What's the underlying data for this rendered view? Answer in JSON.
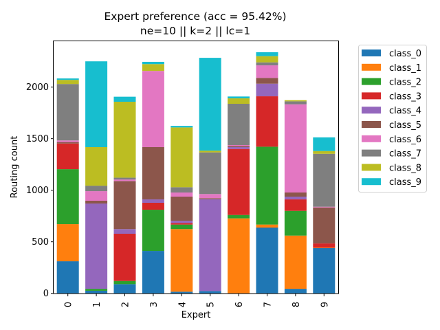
{
  "chart_data": {
    "type": "bar",
    "stacked": true,
    "title_line1": "Expert preference (acc = 95.42%)",
    "title_line2": "ne=10 || k=2 || lc=1",
    "xlabel": "Expert",
    "ylabel": "Routing count",
    "ylim": [
      0,
      2350
    ],
    "yticks": [
      0,
      500,
      1000,
      1500,
      2000
    ],
    "categories": [
      "0",
      "1",
      "2",
      "3",
      "4",
      "5",
      "6",
      "7",
      "8",
      "9"
    ],
    "grid": false,
    "legend_position": "outside-right",
    "series": [
      {
        "name": "class_0",
        "color": "#1f77b4",
        "values": [
          311,
          25,
          89,
          411,
          16,
          22,
          0,
          638,
          44,
          438
        ]
      },
      {
        "name": "class_1",
        "color": "#ff7f0e",
        "values": [
          360,
          0,
          0,
          0,
          607,
          0,
          727,
          29,
          516,
          6
        ]
      },
      {
        "name": "class_2",
        "color": "#2ca02c",
        "values": [
          533,
          19,
          31,
          400,
          44,
          0,
          33,
          755,
          240,
          0
        ]
      },
      {
        "name": "class_3",
        "color": "#d62728",
        "values": [
          249,
          0,
          458,
          67,
          15,
          0,
          640,
          489,
          111,
          40
        ]
      },
      {
        "name": "class_4",
        "color": "#9467bd",
        "values": [
          0,
          827,
          45,
          33,
          22,
          891,
          18,
          122,
          27,
          0
        ]
      },
      {
        "name": "class_5",
        "color": "#8c564b",
        "values": [
          14,
          27,
          466,
          507,
          234,
          10,
          11,
          56,
          40,
          349
        ]
      },
      {
        "name": "class_6",
        "color": "#e377c2",
        "values": [
          16,
          93,
          15,
          739,
          40,
          40,
          9,
          122,
          855,
          7
        ]
      },
      {
        "name": "class_7",
        "color": "#7f7f7f",
        "values": [
          547,
          53,
          18,
          0,
          51,
          404,
          400,
          29,
          29,
          513
        ]
      },
      {
        "name": "class_8",
        "color": "#bcbd22",
        "values": [
          40,
          374,
          736,
          66,
          580,
          17,
          53,
          60,
          11,
          27
        ]
      },
      {
        "name": "class_9",
        "color": "#17becf",
        "values": [
          14,
          832,
          49,
          22,
          15,
          900,
          18,
          38,
          0,
          133
        ]
      }
    ]
  }
}
